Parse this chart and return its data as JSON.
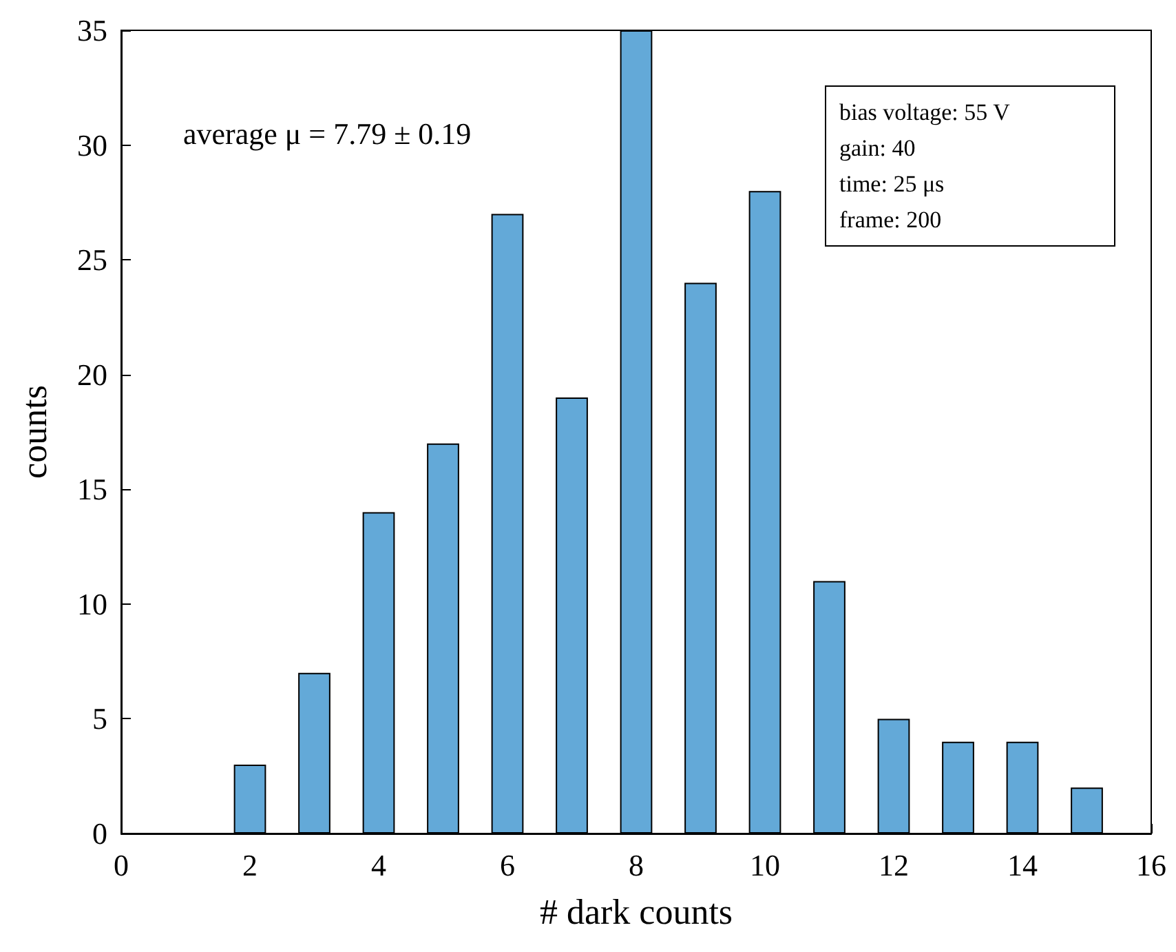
{
  "chart_data": {
    "type": "bar",
    "xlabel": "# dark counts",
    "ylabel": "counts",
    "x": [
      2,
      3,
      4,
      5,
      6,
      7,
      8,
      9,
      10,
      11,
      12,
      13,
      14,
      15
    ],
    "values": [
      3,
      7,
      14,
      17,
      27,
      19,
      35,
      24,
      28,
      11,
      5,
      4,
      4,
      2
    ],
    "color": "#63a9d8",
    "xlim": [
      0,
      16
    ],
    "xticks": [
      0,
      2,
      4,
      6,
      8,
      10,
      12,
      14,
      16
    ],
    "ylim": [
      0,
      35
    ],
    "yticks": [
      0,
      5,
      10,
      15,
      20,
      25,
      30,
      35
    ],
    "grid": false,
    "annotations": [
      "average μ = 7.79 ± 0.19",
      "bias voltage: 55 V\ngain: 40\ntime: 25 μs\nframe: 200"
    ]
  }
}
